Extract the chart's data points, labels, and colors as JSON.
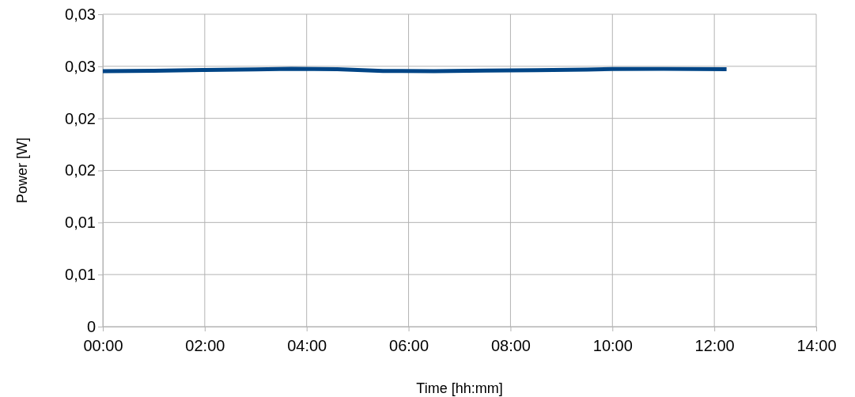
{
  "chart_data": {
    "type": "line",
    "xlabel": "Time [hh:mm]",
    "ylabel": "Power [W]",
    "x": [
      0,
      1,
      2,
      3,
      3.7,
      4.6,
      5.5,
      6.5,
      7.5,
      8.5,
      9.5,
      10,
      11,
      12.24
    ],
    "series": [
      {
        "color": "#004586",
        "values": [
          0.02453,
          0.02457,
          0.02465,
          0.02471,
          0.02476,
          0.02472,
          0.02455,
          0.02453,
          0.02458,
          0.02462,
          0.02468,
          0.02474,
          0.02475,
          0.02472
        ]
      }
    ],
    "xlim": [
      0,
      14
    ],
    "xticks": [
      {
        "value": 0,
        "label": "00:00"
      },
      {
        "value": 2,
        "label": "02:00"
      },
      {
        "value": 4,
        "label": "04:00"
      },
      {
        "value": 6,
        "label": "06:00"
      },
      {
        "value": 8,
        "label": "08:00"
      },
      {
        "value": 10,
        "label": "10:00"
      },
      {
        "value": 12,
        "label": "12:00"
      },
      {
        "value": 14,
        "label": "14:00"
      }
    ],
    "ylim": [
      0,
      0.03
    ],
    "yticks": [
      0,
      {
        "value": 0.005,
        "label": "0,01"
      },
      {
        "value": 0.01,
        "label": "0,01"
      },
      {
        "value": 0.015,
        "label": "0,02"
      },
      {
        "value": 0.02,
        "label": "0,02"
      },
      {
        "value": 0.025,
        "label": "0,03"
      },
      {
        "value": 0.03,
        "label": "0,03"
      }
    ],
    "grid": true,
    "marker": "none",
    "line_style": "solid"
  }
}
